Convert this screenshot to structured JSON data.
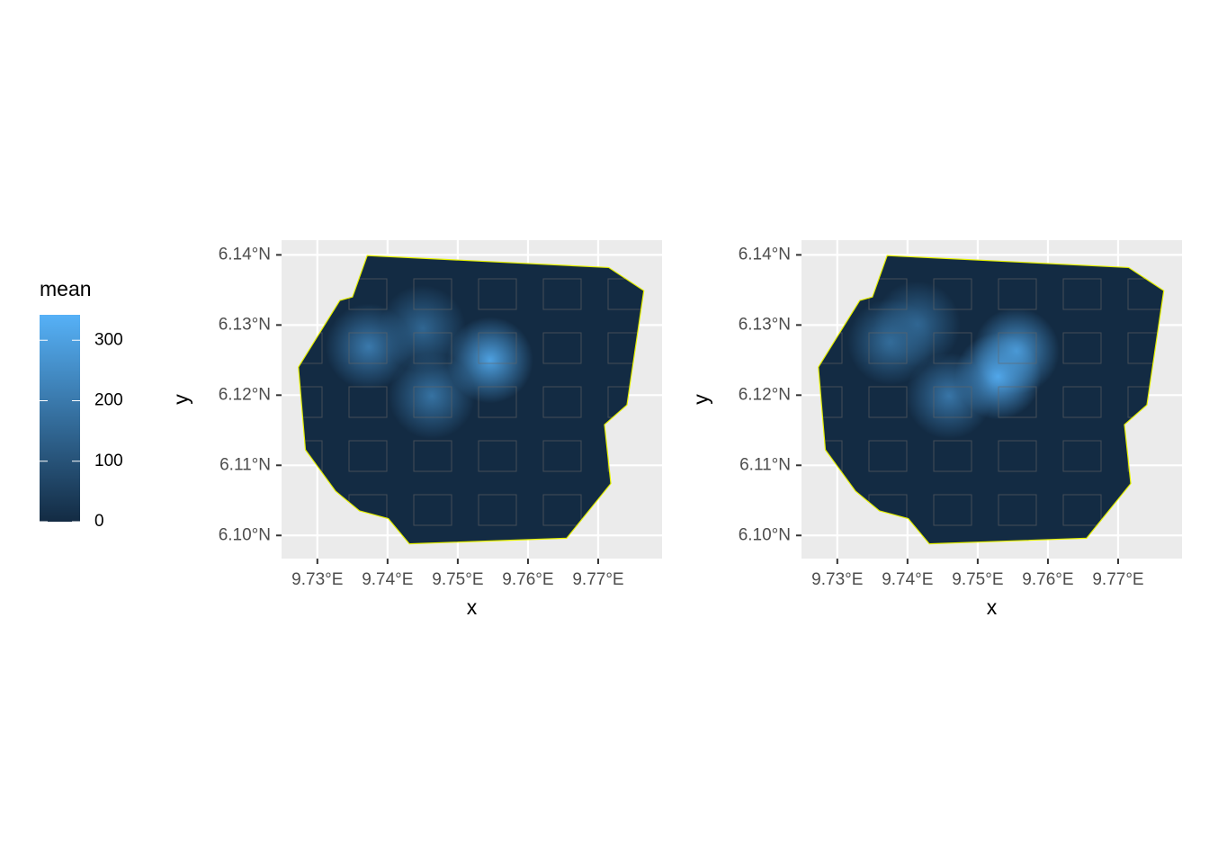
{
  "chart_data": [
    {
      "type": "raster-map",
      "xlabel": "x",
      "ylabel": "y",
      "xlim": [
        9.7249,
        9.7791
      ],
      "ylim": [
        6.0967,
        6.1421
      ],
      "xticks": [
        {
          "value": 9.73,
          "label": "9.73°E"
        },
        {
          "value": 9.74,
          "label": "9.74°E"
        },
        {
          "value": 9.75,
          "label": "9.75°E"
        },
        {
          "value": 9.76,
          "label": "9.76°E"
        },
        {
          "value": 9.77,
          "label": "9.77°E"
        }
      ],
      "yticks": [
        {
          "value": 6.1,
          "label": "6.10°N"
        },
        {
          "value": 6.11,
          "label": "6.11°N"
        },
        {
          "value": 6.12,
          "label": "6.12°N"
        },
        {
          "value": 6.13,
          "label": "6.13°N"
        },
        {
          "value": 6.14,
          "label": "6.14°N"
        }
      ],
      "boundary_color": "#e5f000",
      "boundary": [
        [
          9.7371,
          6.1399
        ],
        [
          9.7715,
          6.1382
        ],
        [
          9.7765,
          6.1349
        ],
        [
          9.7741,
          6.1186
        ],
        [
          9.7709,
          6.1158
        ],
        [
          9.7718,
          6.1074
        ],
        [
          9.7655,
          6.0996
        ],
        [
          9.7431,
          6.0988
        ],
        [
          9.7401,
          6.1024
        ],
        [
          9.736,
          6.1035
        ],
        [
          9.7326,
          6.1063
        ],
        [
          9.7283,
          6.1122
        ],
        [
          9.7273,
          6.124
        ],
        [
          9.7332,
          6.1335
        ],
        [
          9.735,
          6.134
        ]
      ],
      "hotspots": [
        {
          "x": 9.7373,
          "y": 6.1269,
          "value": 200
        },
        {
          "x": 9.7463,
          "y": 6.1199,
          "value": 180
        },
        {
          "x": 9.7546,
          "y": 6.125,
          "value": 300
        },
        {
          "x": 9.745,
          "y": 6.1295,
          "value": 150
        }
      ]
    },
    {
      "type": "raster-map",
      "xlabel": "x",
      "ylabel": "y",
      "xlim": [
        9.7249,
        9.7791
      ],
      "ylim": [
        6.0967,
        6.1421
      ],
      "xticks": [
        {
          "value": 9.73,
          "label": "9.73°E"
        },
        {
          "value": 9.74,
          "label": "9.74°E"
        },
        {
          "value": 9.75,
          "label": "9.75°E"
        },
        {
          "value": 9.76,
          "label": "9.76°E"
        },
        {
          "value": 9.77,
          "label": "9.77°E"
        }
      ],
      "yticks": [
        {
          "value": 6.1,
          "label": "6.10°N"
        },
        {
          "value": 6.11,
          "label": "6.11°N"
        },
        {
          "value": 6.12,
          "label": "6.12°N"
        },
        {
          "value": 6.13,
          "label": "6.13°N"
        },
        {
          "value": 6.14,
          "label": "6.14°N"
        }
      ],
      "boundary_color": "#e5f000",
      "boundary": [
        [
          9.7371,
          6.1399
        ],
        [
          9.7715,
          6.1382
        ],
        [
          9.7765,
          6.1349
        ],
        [
          9.7741,
          6.1186
        ],
        [
          9.7709,
          6.1158
        ],
        [
          9.7718,
          6.1074
        ],
        [
          9.7655,
          6.0996
        ],
        [
          9.7431,
          6.0988
        ],
        [
          9.7401,
          6.1024
        ],
        [
          9.736,
          6.1035
        ],
        [
          9.7326,
          6.1063
        ],
        [
          9.7283,
          6.1122
        ],
        [
          9.7273,
          6.124
        ],
        [
          9.7332,
          6.1335
        ],
        [
          9.735,
          6.134
        ]
      ],
      "hotspots": [
        {
          "x": 9.7529,
          "y": 6.1227,
          "value": 330
        },
        {
          "x": 9.7555,
          "y": 6.1263,
          "value": 280
        },
        {
          "x": 9.7459,
          "y": 6.1199,
          "value": 190
        },
        {
          "x": 9.7376,
          "y": 6.1276,
          "value": 170
        },
        {
          "x": 9.7414,
          "y": 6.1301,
          "value": 150
        }
      ]
    }
  ],
  "legend": {
    "title": "mean",
    "limits": [
      0,
      342
    ],
    "ticks": [
      0,
      100,
      200,
      300
    ],
    "low": "#132b43",
    "high": "#56b1f7"
  }
}
